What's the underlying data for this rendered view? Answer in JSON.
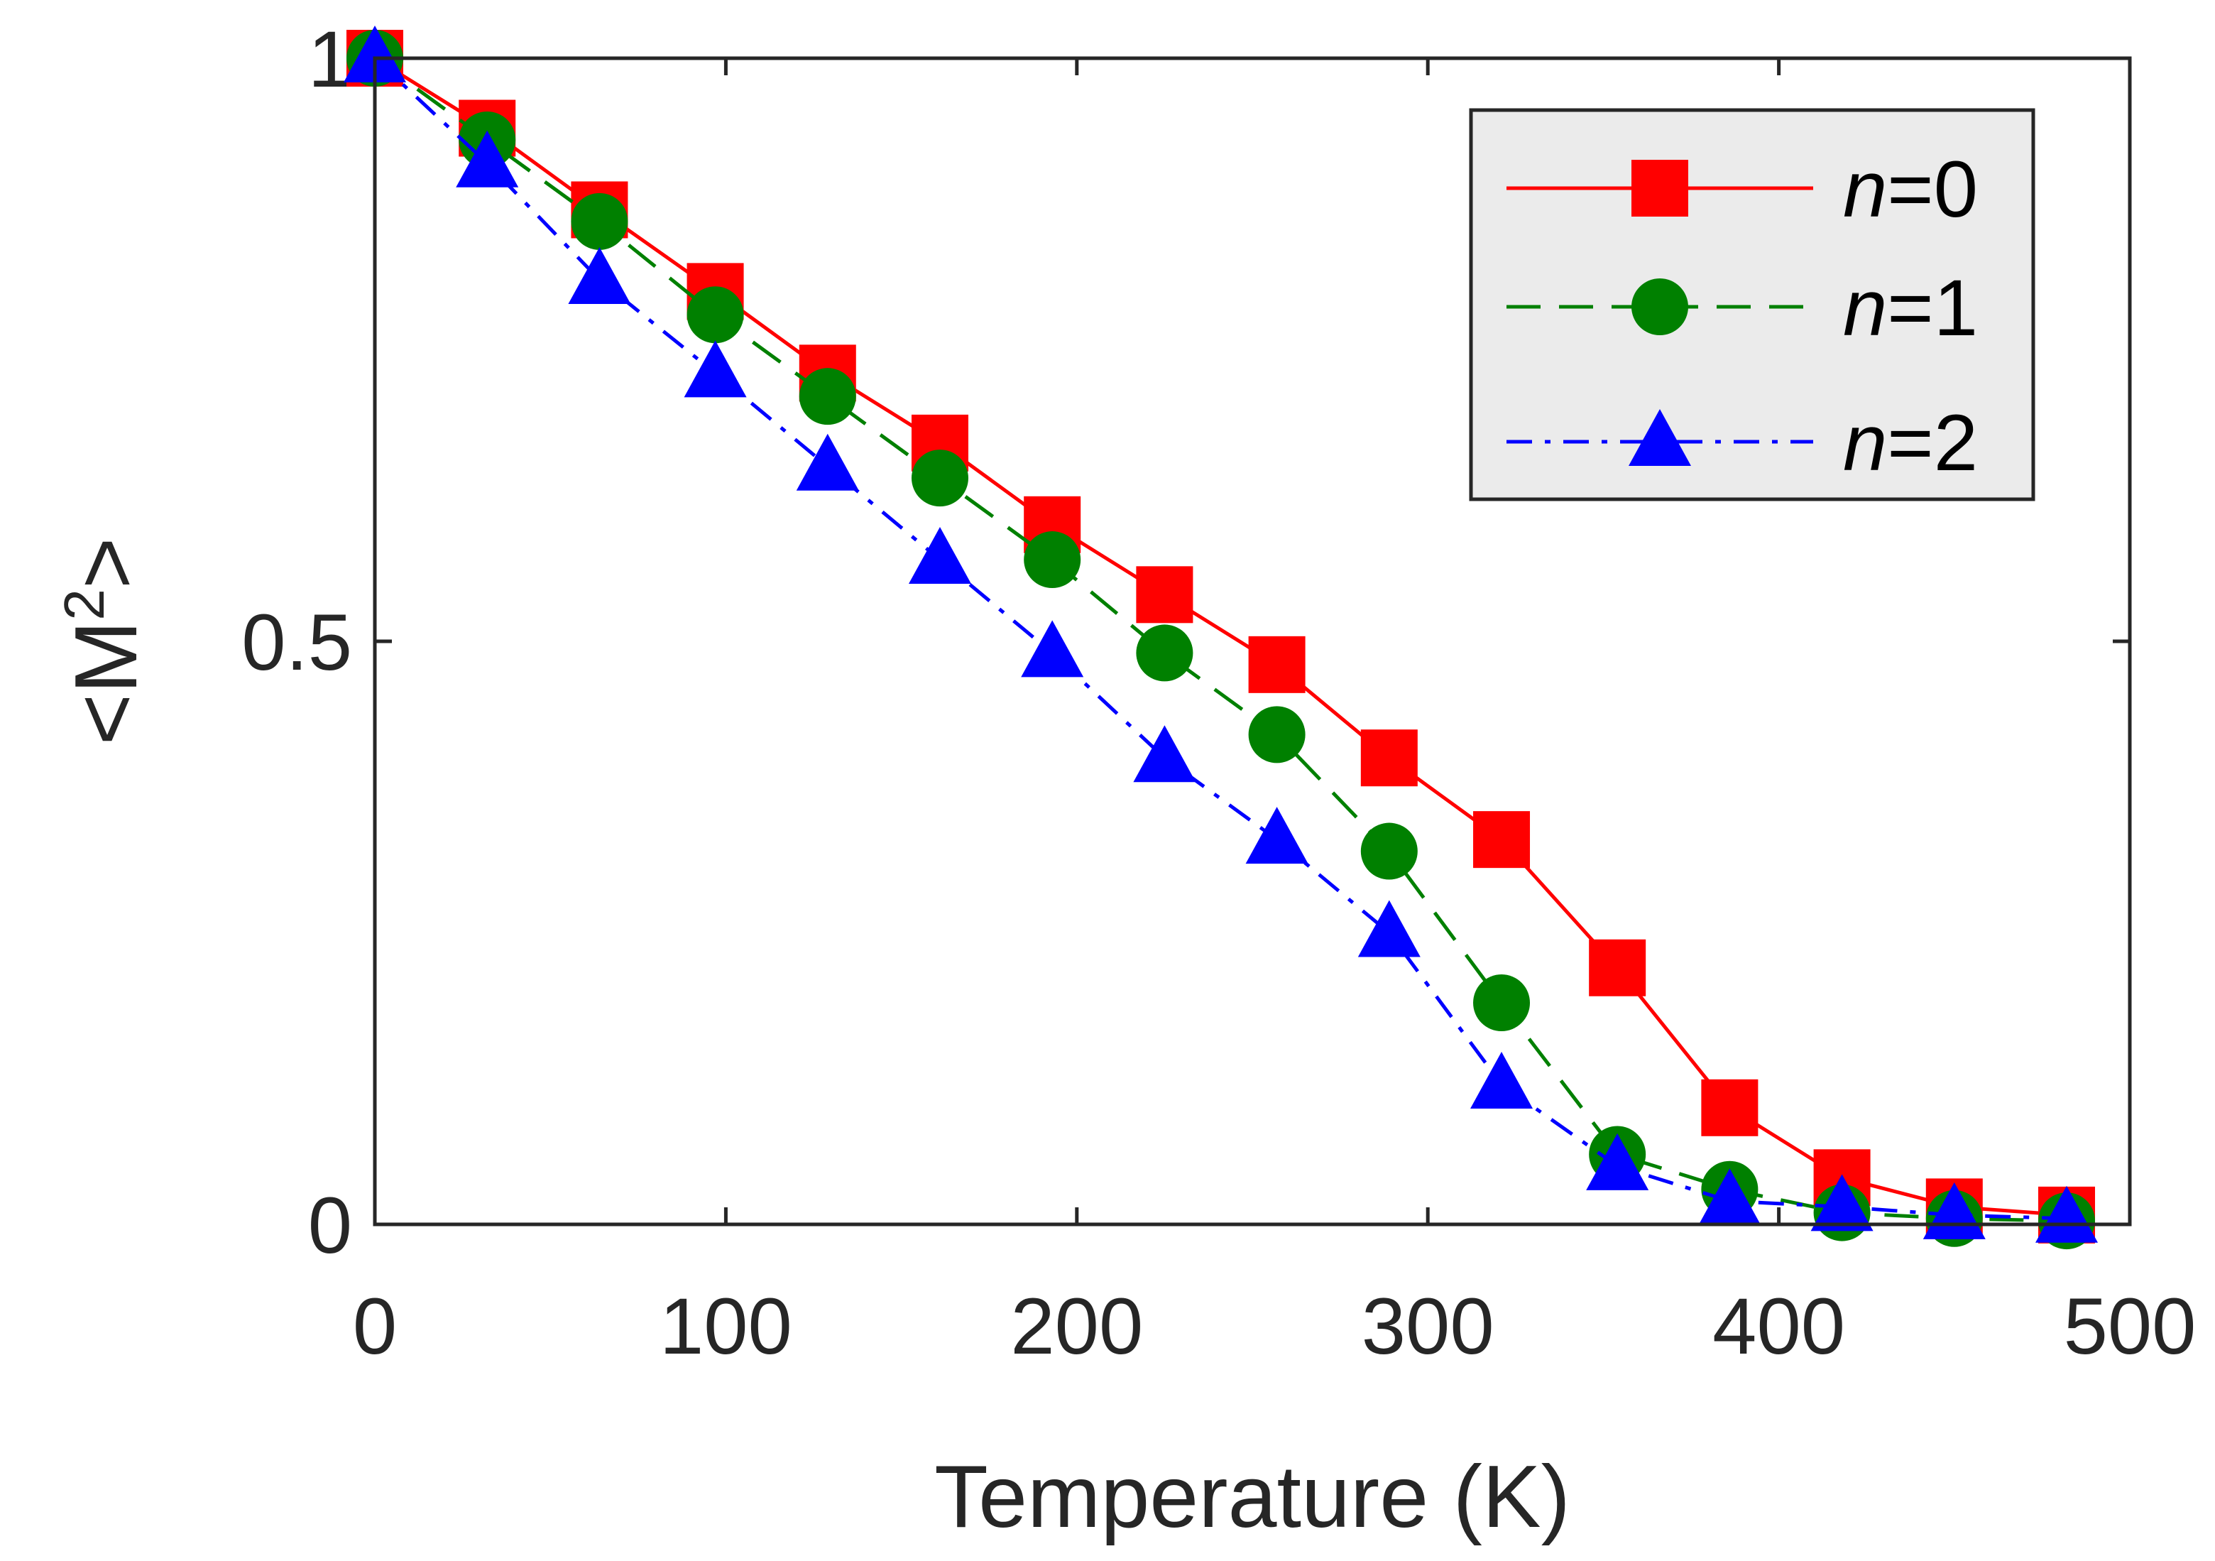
{
  "chart_data": {
    "type": "line",
    "title": "",
    "xlabel": "Temperature (K)",
    "ylabel": "<M",
    "ylabel_superscript": "2",
    "ylabel_suffix": ">",
    "xlim": [
      0,
      500
    ],
    "ylim": [
      0,
      1
    ],
    "xticks": [
      0,
      100,
      200,
      300,
      400,
      500
    ],
    "xtick_labels": [
      "0",
      "100",
      "200",
      "300",
      "400",
      "500"
    ],
    "yticks": [
      0,
      0.5,
      1
    ],
    "ytick_labels": [
      "0",
      "0.5",
      "1"
    ],
    "grid": false,
    "legend_position": "top-right",
    "x": [
      0,
      32,
      64,
      97,
      129,
      161,
      193,
      225,
      257,
      289,
      321,
      354,
      386,
      418,
      450,
      482
    ],
    "series": [
      {
        "name_italic": "n",
        "name_rest": "=0",
        "color": "#ff0000",
        "marker": "square",
        "line": "solid",
        "values": [
          1.0,
          0.94,
          0.87,
          0.8,
          0.73,
          0.67,
          0.6,
          0.54,
          0.48,
          0.4,
          0.33,
          0.22,
          0.1,
          0.04,
          0.015,
          0.008
        ]
      },
      {
        "name_italic": "n",
        "name_rest": "=1",
        "color": "#008000",
        "marker": "circle",
        "line": "dashed",
        "values": [
          1.0,
          0.93,
          0.86,
          0.78,
          0.71,
          0.64,
          0.57,
          0.49,
          0.42,
          0.32,
          0.19,
          0.06,
          0.03,
          0.01,
          0.005,
          0.003
        ]
      },
      {
        "name_italic": "n",
        "name_rest": "=2",
        "color": "#0000ff",
        "marker": "triangle",
        "line": "dashdot",
        "values": [
          1.0,
          0.91,
          0.81,
          0.73,
          0.65,
          0.57,
          0.49,
          0.4,
          0.33,
          0.25,
          0.12,
          0.05,
          0.02,
          0.015,
          0.008,
          0.005
        ]
      }
    ]
  }
}
